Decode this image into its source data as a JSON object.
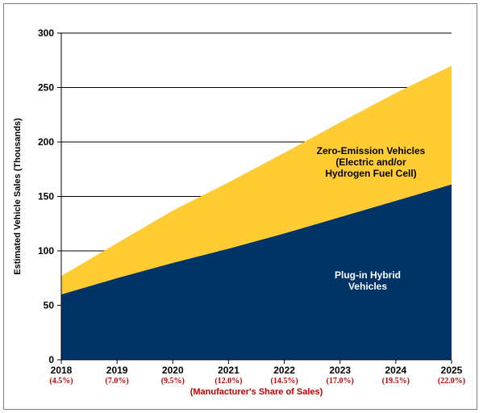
{
  "chart_data": {
    "type": "area",
    "stacked": true,
    "categories": [
      "2018",
      "2019",
      "2020",
      "2021",
      "2022",
      "2023",
      "2024",
      "2025"
    ],
    "category_sublabels": [
      "(4.5%)",
      "(7.0%)",
      "(9.5%)",
      "(12.0%)",
      "(14.5%)",
      "(17.0%)",
      "(19.5%)",
      "(22.0%)"
    ],
    "xlabel": "(Manufacturer's Share of Sales)",
    "ylabel": "Estimated Vehicle Sales (Thousands)",
    "ylim": [
      0,
      300
    ],
    "yticks": [
      0,
      50,
      100,
      150,
      200,
      250,
      300
    ],
    "grid": true,
    "series": [
      {
        "name_lines": [
          "Plug-in Hybrid",
          "Vehicles"
        ],
        "values": [
          60,
          75,
          89,
          102,
          116,
          131,
          146,
          161
        ],
        "color": "#003366",
        "label_color": "#ffffff"
      },
      {
        "name_lines": [
          "Zero-Emission Vehicles",
          "(Electric and/or",
          "Hydrogen Fuel Cell)"
        ],
        "values": [
          17,
          32,
          48,
          61,
          74,
          87,
          99,
          109
        ],
        "color": "#ffcc33",
        "label_color": "#000000"
      }
    ]
  }
}
